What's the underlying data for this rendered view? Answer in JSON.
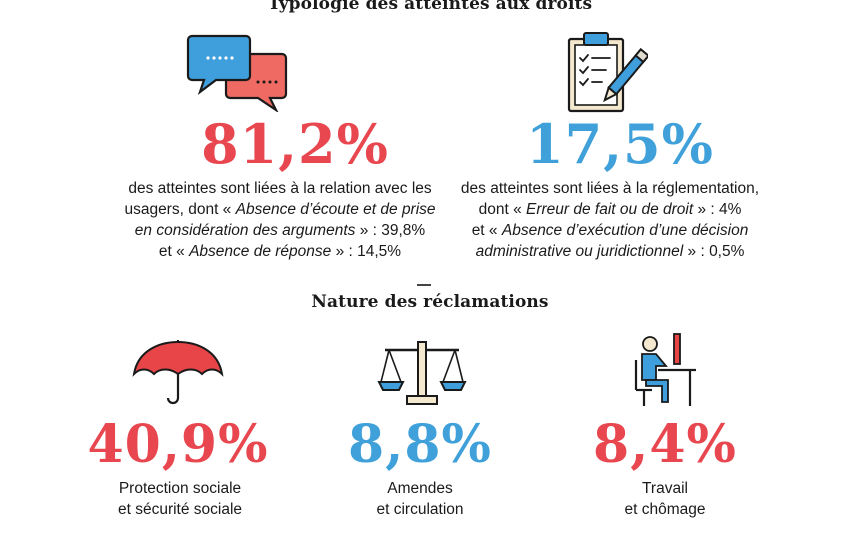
{
  "section1": {
    "title": "Typologie des atteintes aux droits",
    "left": {
      "icon": "speech-bubbles-icon",
      "percent": "81,2%",
      "color": "#e8474f",
      "line1": "des atteintes sont liées à la relation avec les",
      "line2_plain": "usagers, dont « ",
      "line2_italic": "Absence d’écoute et de prise",
      "line3_italic": "en considération des arguments",
      "line3_plain": " » : 39,8%",
      "line4_plain_a": "et « ",
      "line4_italic": "Absence de réponse",
      "line4_plain_b": " » : 14,5%"
    },
    "right": {
      "icon": "clipboard-checklist-icon",
      "percent": "17,5%",
      "color": "#3fa0da",
      "line1": "des atteintes sont liées à la réglementation,",
      "line2_plain_a": "dont « ",
      "line2_italic": "Erreur de fait ou de droit",
      "line2_plain_b": " » : 4%",
      "line3_plain": "et « ",
      "line3_italic": "Absence d’exécution d’une décision",
      "line4_italic": "administrative ou juridictionnel",
      "line4_plain": " » : 0,5%"
    }
  },
  "section2": {
    "title": "Nature des réclamations",
    "items": [
      {
        "icon": "umbrella-icon",
        "percent": "40,9%",
        "color": "#e8474f",
        "label_line1": "Protection sociale",
        "label_line2": "et sécurité sociale"
      },
      {
        "icon": "scales-icon",
        "percent": "8,8%",
        "color": "#3fa0da",
        "label_line1": "Amendes",
        "label_line2": "et circulation"
      },
      {
        "icon": "person-at-desk-icon",
        "percent": "8,4%",
        "color": "#e8474f",
        "label_line1": "Travail",
        "label_line2": "et chômage"
      }
    ]
  },
  "colors": {
    "red": "#e8474f",
    "blue": "#3fa0da",
    "ink": "#1a1a1a"
  }
}
